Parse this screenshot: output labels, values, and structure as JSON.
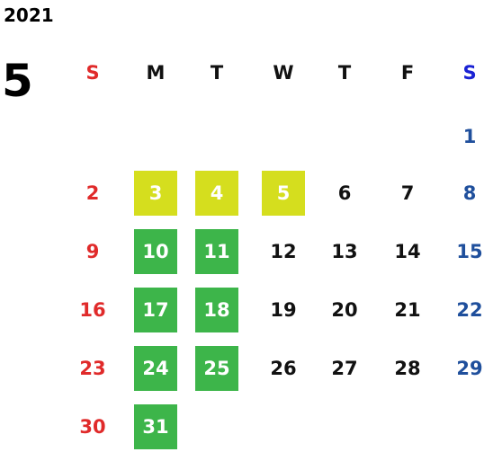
{
  "year": "2021",
  "month": "5",
  "weekdays": [
    "S",
    "M",
    "T",
    "W",
    "T",
    "F",
    "S"
  ],
  "weeks": [
    [
      null,
      null,
      null,
      null,
      null,
      null,
      "1"
    ],
    [
      "2",
      "3",
      "4",
      "5",
      "6",
      "7",
      "8"
    ],
    [
      "9",
      "10",
      "11",
      "12",
      "13",
      "14",
      "15"
    ],
    [
      "16",
      "17",
      "18",
      "19",
      "20",
      "21",
      "22"
    ],
    [
      "23",
      "24",
      "25",
      "26",
      "27",
      "28",
      "29"
    ],
    [
      "30",
      "31",
      null,
      null,
      null,
      null,
      null
    ]
  ],
  "colors": {
    "sunday": "#e02a2a",
    "saturday": "#1f4f9c",
    "weekday": "#111111",
    "weekday_header": "#111111",
    "saturday_header": "#1a22d4"
  },
  "highlights": [
    {
      "color": "#d5de1e",
      "days": [
        "3",
        "4",
        "5"
      ]
    },
    {
      "color": "#3db54a",
      "days": [
        "10",
        "11",
        "17",
        "18",
        "24",
        "25",
        "31"
      ]
    }
  ]
}
